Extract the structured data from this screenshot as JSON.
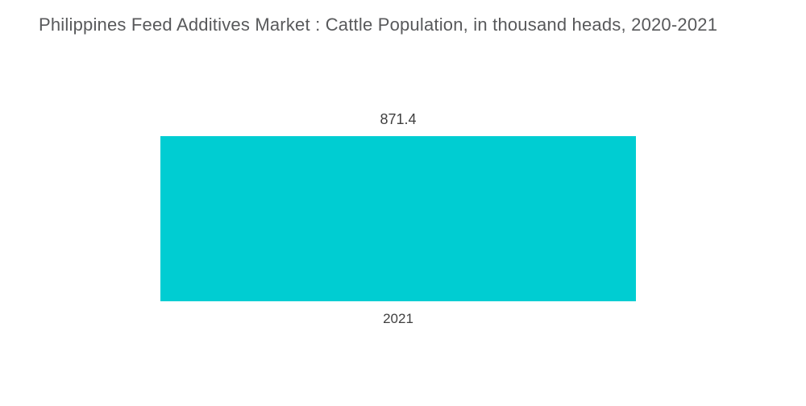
{
  "title": "Philippines Feed Additives Market : Cattle Population, in thousand heads, 2020-2021",
  "chart_data": {
    "type": "bar",
    "title": "Philippines Feed Additives Market : Cattle Population, in thousand heads, 2020-2021",
    "categories": [
      "2021"
    ],
    "values": [
      871.4
    ],
    "series": [
      {
        "name": "Cattle Population (thousand heads)",
        "values": [
          871.4
        ]
      }
    ],
    "value_labels": [
      "871.4"
    ],
    "xlabel": "",
    "ylabel": "Cattle Population, in thousand heads",
    "ylim": [
      0,
      871.4
    ],
    "grid": false,
    "legend": false,
    "legend_position": "none",
    "bar_color": "#00cdd2"
  },
  "labels": {
    "bar_value": "871.4",
    "bar_category": "2021"
  },
  "colors": {
    "bar": "#00cdd2",
    "title_text": "#58595b",
    "label_text": "#3f3f3f",
    "background": "#ffffff"
  }
}
